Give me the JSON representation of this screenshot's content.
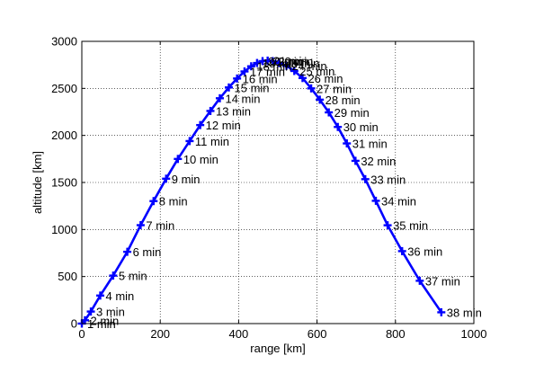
{
  "chart_data": {
    "type": "line",
    "title": "",
    "xlabel": "range [km]",
    "ylabel": "altitude [km]",
    "xlim": [
      0,
      1000
    ],
    "ylim": [
      0,
      3000
    ],
    "xticks": [
      "0",
      "200",
      "400",
      "600",
      "800",
      "1000"
    ],
    "yticks": [
      "0",
      "500",
      "1000",
      "1500",
      "2000",
      "2500",
      "3000"
    ],
    "grid": true,
    "line_color": "#0000ff",
    "marker": "plus",
    "points": [
      {
        "x": 0,
        "y": 0,
        "label": "1 min"
      },
      {
        "x": 8,
        "y": 35,
        "label": "2 min"
      },
      {
        "x": 23,
        "y": 128,
        "label": "3 min"
      },
      {
        "x": 47,
        "y": 298,
        "label": "4 min"
      },
      {
        "x": 80,
        "y": 510,
        "label": "5 min"
      },
      {
        "x": 116,
        "y": 763,
        "label": "6 min"
      },
      {
        "x": 150,
        "y": 1046,
        "label": "7 min"
      },
      {
        "x": 183,
        "y": 1302,
        "label": "8 min"
      },
      {
        "x": 215,
        "y": 1540,
        "label": "9 min"
      },
      {
        "x": 245,
        "y": 1750,
        "label": "10 min"
      },
      {
        "x": 275,
        "y": 1940,
        "label": "11 min"
      },
      {
        "x": 302,
        "y": 2110,
        "label": "12 min"
      },
      {
        "x": 328,
        "y": 2260,
        "label": "13 min"
      },
      {
        "x": 352,
        "y": 2395,
        "label": "14 min"
      },
      {
        "x": 375,
        "y": 2510,
        "label": "15 min"
      },
      {
        "x": 396,
        "y": 2605,
        "label": "16 min"
      },
      {
        "x": 415,
        "y": 2680,
        "label": "17 min"
      },
      {
        "x": 432,
        "y": 2735,
        "label": "18 min"
      },
      {
        "x": 447,
        "y": 2770,
        "label": "19 min"
      },
      {
        "x": 461,
        "y": 2790,
        "label": "20 min"
      },
      {
        "x": 474,
        "y": 2795,
        "label": "21 min"
      },
      {
        "x": 487,
        "y": 2790,
        "label": "22 min"
      },
      {
        "x": 503,
        "y": 2770,
        "label": "23 min"
      },
      {
        "x": 522,
        "y": 2740,
        "label": "24 min"
      },
      {
        "x": 542,
        "y": 2685,
        "label": "25 min"
      },
      {
        "x": 563,
        "y": 2610,
        "label": "26 min"
      },
      {
        "x": 585,
        "y": 2500,
        "label": "27 min"
      },
      {
        "x": 607,
        "y": 2380,
        "label": "28 min"
      },
      {
        "x": 630,
        "y": 2245,
        "label": "29 min"
      },
      {
        "x": 653,
        "y": 2090,
        "label": "30 min"
      },
      {
        "x": 676,
        "y": 1915,
        "label": "31 min"
      },
      {
        "x": 698,
        "y": 1730,
        "label": "32 min"
      },
      {
        "x": 723,
        "y": 1535,
        "label": "33 min"
      },
      {
        "x": 750,
        "y": 1305,
        "label": "34 min"
      },
      {
        "x": 780,
        "y": 1045,
        "label": "35 min"
      },
      {
        "x": 817,
        "y": 770,
        "label": "36 min"
      },
      {
        "x": 862,
        "y": 455,
        "label": "37 min"
      },
      {
        "x": 917,
        "y": 120,
        "label": "38 min"
      }
    ]
  }
}
